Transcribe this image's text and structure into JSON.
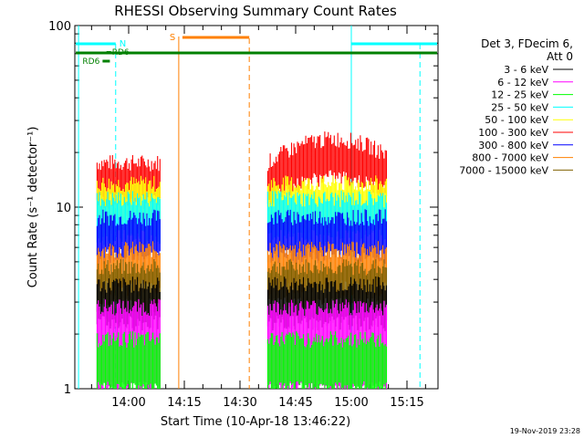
{
  "chart_data": {
    "type": "line",
    "title": "RHESSI Observing Summary Count Rates",
    "ylabel": "Count Rate (s⁻¹ detector⁻¹)",
    "xlabel": "Start Time (10-Apr-18 13:46:22)",
    "y_scale": "log",
    "ylim": [
      1,
      100
    ],
    "y_ticks": [
      {
        "value": 1,
        "label": "1"
      },
      {
        "value": 10,
        "label": "10"
      },
      {
        "value": 100,
        "label": "100"
      }
    ],
    "x_range_minutes": [
      -14,
      25
    ],
    "x_ticks": [
      {
        "label": "14:00",
        "offset_min": 0
      },
      {
        "label": "14:15",
        "offset_min": 15
      },
      {
        "label": "14:30",
        "offset_min": 30
      },
      {
        "label": "14:45",
        "offset_min": 45
      },
      {
        "label": "15:00",
        "offset_min": 60
      },
      {
        "label": "15:15",
        "offset_min": 75
      }
    ],
    "legend": {
      "header": [
        "Det 3, FDecim 6,",
        "Att 0"
      ],
      "placement": "right"
    },
    "series": [
      {
        "name": "3 - 6 keV",
        "color": "#000000",
        "level": 3.2
      },
      {
        "name": "6 - 12 keV",
        "color": "#ff00ff",
        "level": 2.4
      },
      {
        "name": "12 - 25 keV",
        "color": "#00ff00",
        "level": 1.6
      },
      {
        "name": "25 - 50 keV",
        "color": "#00ffff",
        "level": 9.5
      },
      {
        "name": "50 - 100 keV",
        "color": "#ffff00",
        "level": 11.5
      },
      {
        "name": "100 - 300 keV",
        "color": "#ff0000",
        "level": 15.0
      },
      {
        "name": "300 - 800 keV",
        "color": "#0000ff",
        "level": 7.5
      },
      {
        "name": "800 - 7000 keV",
        "color": "#ff8000",
        "level": 5.0
      },
      {
        "name": "7000 - 15000 keV",
        "color": "#806000",
        "level": 4.0
      }
    ],
    "data_intervals": [
      {
        "start_min": -8.5,
        "end_min": 8.5
      },
      {
        "start_min": 37.5,
        "end_min": 69.5
      }
    ],
    "annotations": {
      "night_markers": [
        {
          "label": "N",
          "start_min": -14,
          "end_min": -3.5,
          "color": "#00ffff",
          "dash_at_min": -3.5,
          "line_at_min": 60
        }
      ],
      "n_bar_2": {
        "start_min": 60,
        "end_min": 78,
        "color": "#00ffff"
      },
      "saa": {
        "label": "S",
        "start_min": 13.5,
        "end_min": 32.5,
        "color": "#ff8000"
      },
      "rd_labels": [
        {
          "label": "RD6",
          "at_min": -4.5,
          "color": "#008000"
        },
        {
          "label": "RD6",
          "at_min": -9.0,
          "color": "#008000"
        }
      ],
      "dashed_lines_min": [
        -3.5,
        32.5,
        78.5
      ],
      "solid_lines_min": [
        -13.5,
        13.5,
        60
      ]
    }
  },
  "footer": {
    "timestamp": "19-Nov-2019 23:28"
  }
}
